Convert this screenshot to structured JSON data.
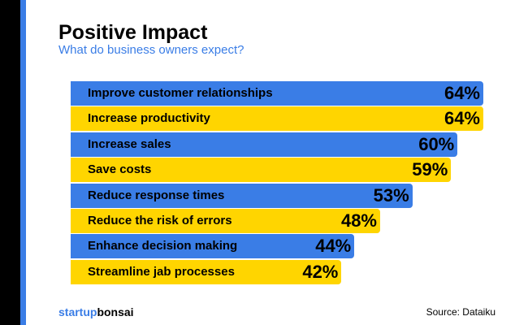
{
  "chart_data": {
    "type": "bar",
    "orientation": "horizontal",
    "title": "Positive Impact",
    "subtitle": "What do business owners expect?",
    "categories": [
      "Improve customer relationships",
      "Increase productivity",
      "Increase sales",
      "Save costs",
      "Reduce response times",
      "Reduce the risk of errors",
      "Enhance decision making",
      "Streamline jab processes"
    ],
    "values": [
      64,
      64,
      60,
      59,
      53,
      48,
      44,
      42
    ],
    "value_labels": [
      "64%",
      "64%",
      "60%",
      "59%",
      "53%",
      "48%",
      "44%",
      "42%"
    ],
    "colors": [
      "#3a7de6",
      "#ffd500"
    ],
    "xlim": [
      0,
      64
    ],
    "grid": false
  },
  "footer": {
    "logo_part1": "startup",
    "logo_part2": "bonsai",
    "source": "Source: Dataiku"
  },
  "colors": {
    "accent_blue": "#3a7de6",
    "accent_yellow": "#ffd500"
  }
}
